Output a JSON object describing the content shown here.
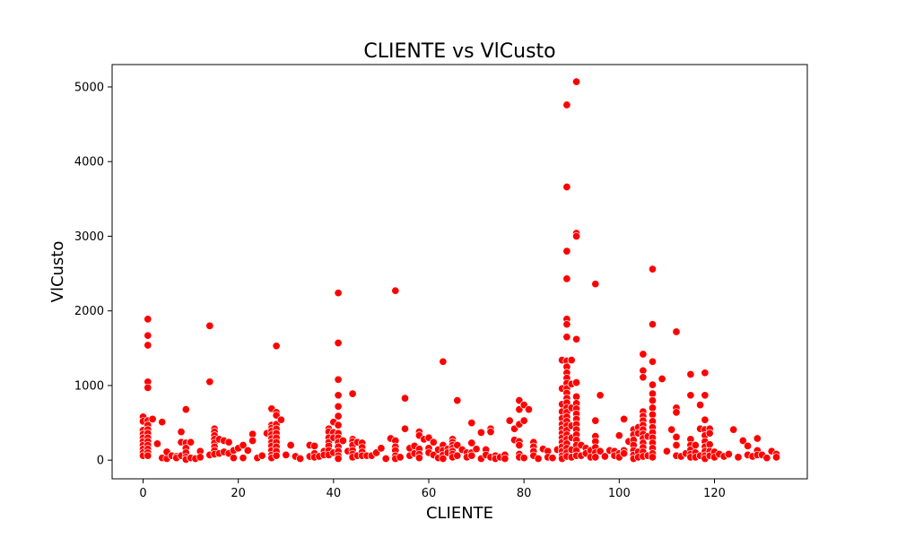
{
  "chart_data": {
    "type": "scatter",
    "title": "CLIENTE vs VlCusto",
    "xlabel": "CLIENTE",
    "ylabel": "VlCusto",
    "xlim": [
      -6.5,
      139.5
    ],
    "ylim": [
      -250,
      5300
    ],
    "xticks": [
      0,
      20,
      40,
      60,
      80,
      100,
      120
    ],
    "yticks": [
      0,
      1000,
      2000,
      3000,
      4000,
      5000
    ],
    "grid": false,
    "legend": "none",
    "marker_color": "#ff0000",
    "marker_edge": "#ffffff",
    "points": [
      [
        0,
        580
      ],
      [
        0,
        520
      ],
      [
        0,
        400
      ],
      [
        0,
        350
      ],
      [
        0,
        300
      ],
      [
        0,
        250
      ],
      [
        0,
        200
      ],
      [
        0,
        150
      ],
      [
        0,
        100
      ],
      [
        0,
        60
      ],
      [
        1,
        1890
      ],
      [
        1,
        1670
      ],
      [
        1,
        1540
      ],
      [
        1,
        1050
      ],
      [
        1,
        970
      ],
      [
        1,
        530
      ],
      [
        1,
        470
      ],
      [
        1,
        410
      ],
      [
        1,
        360
      ],
      [
        1,
        300
      ],
      [
        1,
        250
      ],
      [
        1,
        200
      ],
      [
        1,
        150
      ],
      [
        1,
        100
      ],
      [
        1,
        60
      ],
      [
        2,
        550
      ],
      [
        3,
        220
      ],
      [
        4,
        510
      ],
      [
        4,
        30
      ],
      [
        5,
        20
      ],
      [
        5,
        110
      ],
      [
        6,
        60
      ],
      [
        7,
        50
      ],
      [
        7,
        30
      ],
      [
        8,
        380
      ],
      [
        8,
        240
      ],
      [
        8,
        60
      ],
      [
        9,
        680
      ],
      [
        9,
        230
      ],
      [
        9,
        160
      ],
      [
        9,
        100
      ],
      [
        9,
        40
      ],
      [
        9,
        10
      ],
      [
        10,
        240
      ],
      [
        10,
        30
      ],
      [
        11,
        20
      ],
      [
        12,
        120
      ],
      [
        12,
        40
      ],
      [
        14,
        1800
      ],
      [
        14,
        1050
      ],
      [
        14,
        70
      ],
      [
        15,
        420
      ],
      [
        15,
        380
      ],
      [
        15,
        330
      ],
      [
        15,
        280
      ],
      [
        15,
        230
      ],
      [
        15,
        180
      ],
      [
        15,
        130
      ],
      [
        15,
        80
      ],
      [
        16,
        280
      ],
      [
        16,
        90
      ],
      [
        17,
        260
      ],
      [
        17,
        110
      ],
      [
        18,
        240
      ],
      [
        18,
        90
      ],
      [
        19,
        130
      ],
      [
        19,
        30
      ],
      [
        20,
        160
      ],
      [
        21,
        200
      ],
      [
        21,
        30
      ],
      [
        22,
        130
      ],
      [
        23,
        350
      ],
      [
        23,
        260
      ],
      [
        24,
        30
      ],
      [
        25,
        60
      ],
      [
        26,
        360
      ],
      [
        27,
        690
      ],
      [
        27,
        470
      ],
      [
        27,
        430
      ],
      [
        27,
        390
      ],
      [
        27,
        340
      ],
      [
        27,
        290
      ],
      [
        27,
        240
      ],
      [
        27,
        190
      ],
      [
        27,
        130
      ],
      [
        27,
        70
      ],
      [
        27,
        30
      ],
      [
        28,
        1530
      ],
      [
        28,
        640
      ],
      [
        28,
        600
      ],
      [
        28,
        480
      ],
      [
        28,
        420
      ],
      [
        28,
        360
      ],
      [
        28,
        300
      ],
      [
        28,
        240
      ],
      [
        28,
        180
      ],
      [
        28,
        120
      ],
      [
        28,
        60
      ],
      [
        29,
        540
      ],
      [
        30,
        70
      ],
      [
        31,
        200
      ],
      [
        32,
        50
      ],
      [
        33,
        20
      ],
      [
        35,
        200
      ],
      [
        35,
        50
      ],
      [
        36,
        190
      ],
      [
        36,
        90
      ],
      [
        36,
        40
      ],
      [
        37,
        50
      ],
      [
        38,
        120
      ],
      [
        38,
        70
      ],
      [
        39,
        420
      ],
      [
        39,
        380
      ],
      [
        39,
        300
      ],
      [
        39,
        240
      ],
      [
        39,
        190
      ],
      [
        39,
        130
      ],
      [
        39,
        70
      ],
      [
        40,
        510
      ],
      [
        40,
        370
      ],
      [
        40,
        300
      ],
      [
        40,
        100
      ],
      [
        41,
        2240
      ],
      [
        41,
        1570
      ],
      [
        41,
        1080
      ],
      [
        41,
        870
      ],
      [
        41,
        720
      ],
      [
        41,
        590
      ],
      [
        41,
        470
      ],
      [
        41,
        360
      ],
      [
        41,
        300
      ],
      [
        41,
        240
      ],
      [
        41,
        180
      ],
      [
        41,
        120
      ],
      [
        41,
        60
      ],
      [
        41,
        20
      ],
      [
        42,
        260
      ],
      [
        43,
        120
      ],
      [
        44,
        890
      ],
      [
        44,
        280
      ],
      [
        44,
        250
      ],
      [
        44,
        200
      ],
      [
        44,
        130
      ],
      [
        44,
        80
      ],
      [
        44,
        40
      ],
      [
        45,
        240
      ],
      [
        45,
        60
      ],
      [
        46,
        230
      ],
      [
        46,
        170
      ],
      [
        46,
        110
      ],
      [
        46,
        60
      ],
      [
        47,
        60
      ],
      [
        48,
        60
      ],
      [
        49,
        100
      ],
      [
        50,
        160
      ],
      [
        51,
        20
      ],
      [
        52,
        290
      ],
      [
        53,
        2270
      ],
      [
        53,
        260
      ],
      [
        53,
        180
      ],
      [
        53,
        130
      ],
      [
        53,
        60
      ],
      [
        53,
        20
      ],
      [
        54,
        40
      ],
      [
        55,
        830
      ],
      [
        55,
        420
      ],
      [
        56,
        160
      ],
      [
        56,
        60
      ],
      [
        57,
        190
      ],
      [
        57,
        90
      ],
      [
        58,
        380
      ],
      [
        58,
        330
      ],
      [
        58,
        150
      ],
      [
        58,
        80
      ],
      [
        58,
        30
      ],
      [
        59,
        280
      ],
      [
        60,
        300
      ],
      [
        60,
        160
      ],
      [
        60,
        100
      ],
      [
        61,
        240
      ],
      [
        61,
        70
      ],
      [
        62,
        140
      ],
      [
        62,
        30
      ],
      [
        63,
        1320
      ],
      [
        63,
        200
      ],
      [
        63,
        130
      ],
      [
        63,
        70
      ],
      [
        63,
        20
      ],
      [
        64,
        150
      ],
      [
        64,
        100
      ],
      [
        65,
        280
      ],
      [
        65,
        240
      ],
      [
        65,
        200
      ],
      [
        65,
        160
      ],
      [
        65,
        120
      ],
      [
        65,
        80
      ],
      [
        65,
        40
      ],
      [
        66,
        800
      ],
      [
        66,
        200
      ],
      [
        66,
        60
      ],
      [
        67,
        140
      ],
      [
        68,
        100
      ],
      [
        68,
        40
      ],
      [
        69,
        500
      ],
      [
        69,
        230
      ],
      [
        69,
        100
      ],
      [
        69,
        60
      ],
      [
        70,
        150
      ],
      [
        71,
        370
      ],
      [
        71,
        20
      ],
      [
        72,
        140
      ],
      [
        72,
        70
      ],
      [
        73,
        420
      ],
      [
        73,
        380
      ],
      [
        73,
        40
      ],
      [
        74,
        60
      ],
      [
        74,
        20
      ],
      [
        75,
        40
      ],
      [
        76,
        70
      ],
      [
        76,
        20
      ],
      [
        77,
        530
      ],
      [
        78,
        420
      ],
      [
        78,
        270
      ],
      [
        79,
        800
      ],
      [
        79,
        680
      ],
      [
        79,
        480
      ],
      [
        79,
        250
      ],
      [
        79,
        200
      ],
      [
        79,
        80
      ],
      [
        79,
        40
      ],
      [
        80,
        740
      ],
      [
        80,
        530
      ],
      [
        80,
        30
      ],
      [
        81,
        680
      ],
      [
        82,
        240
      ],
      [
        82,
        180
      ],
      [
        82,
        120
      ],
      [
        82,
        60
      ],
      [
        83,
        20
      ],
      [
        84,
        150
      ],
      [
        85,
        120
      ],
      [
        85,
        40
      ],
      [
        86,
        30
      ],
      [
        87,
        140
      ],
      [
        88,
        1340
      ],
      [
        88,
        960
      ],
      [
        88,
        750
      ],
      [
        88,
        650
      ],
      [
        88,
        560
      ],
      [
        88,
        480
      ],
      [
        88,
        420
      ],
      [
        88,
        360
      ],
      [
        88,
        300
      ],
      [
        88,
        240
      ],
      [
        88,
        180
      ],
      [
        88,
        120
      ],
      [
        88,
        60
      ],
      [
        88,
        20
      ],
      [
        89,
        4760
      ],
      [
        89,
        3660
      ],
      [
        89,
        2800
      ],
      [
        89,
        2430
      ],
      [
        89,
        1890
      ],
      [
        89,
        1820
      ],
      [
        89,
        1650
      ],
      [
        89,
        1330
      ],
      [
        89,
        1250
      ],
      [
        89,
        1170
      ],
      [
        89,
        1100
      ],
      [
        89,
        1030
      ],
      [
        89,
        960
      ],
      [
        89,
        900
      ],
      [
        89,
        830
      ],
      [
        89,
        770
      ],
      [
        89,
        700
      ],
      [
        89,
        640
      ],
      [
        89,
        580
      ],
      [
        89,
        520
      ],
      [
        89,
        460
      ],
      [
        89,
        400
      ],
      [
        89,
        340
      ],
      [
        89,
        280
      ],
      [
        89,
        220
      ],
      [
        89,
        160
      ],
      [
        89,
        100
      ],
      [
        89,
        50
      ],
      [
        90,
        1340
      ],
      [
        90,
        1020
      ],
      [
        90,
        700
      ],
      [
        90,
        460
      ],
      [
        90,
        300
      ],
      [
        90,
        140
      ],
      [
        90,
        40
      ],
      [
        91,
        5070
      ],
      [
        91,
        3040
      ],
      [
        91,
        3000
      ],
      [
        91,
        1620
      ],
      [
        91,
        1040
      ],
      [
        91,
        850
      ],
      [
        91,
        760
      ],
      [
        91,
        690
      ],
      [
        91,
        620
      ],
      [
        91,
        550
      ],
      [
        91,
        480
      ],
      [
        91,
        410
      ],
      [
        91,
        340
      ],
      [
        91,
        270
      ],
      [
        91,
        200
      ],
      [
        91,
        130
      ],
      [
        91,
        60
      ],
      [
        92,
        200
      ],
      [
        92,
        60
      ],
      [
        93,
        160
      ],
      [
        93,
        90
      ],
      [
        94,
        130
      ],
      [
        94,
        40
      ],
      [
        95,
        2360
      ],
      [
        95,
        530
      ],
      [
        95,
        320
      ],
      [
        95,
        250
      ],
      [
        95,
        170
      ],
      [
        95,
        100
      ],
      [
        95,
        40
      ],
      [
        96,
        870
      ],
      [
        96,
        120
      ],
      [
        97,
        50
      ],
      [
        98,
        130
      ],
      [
        99,
        120
      ],
      [
        99,
        60
      ],
      [
        100,
        330
      ],
      [
        100,
        90
      ],
      [
        100,
        40
      ],
      [
        101,
        550
      ],
      [
        101,
        130
      ],
      [
        101,
        90
      ],
      [
        102,
        250
      ],
      [
        103,
        410
      ],
      [
        103,
        340
      ],
      [
        103,
        270
      ],
      [
        103,
        200
      ],
      [
        103,
        130
      ],
      [
        103,
        70
      ],
      [
        103,
        20
      ],
      [
        104,
        440
      ],
      [
        104,
        360
      ],
      [
        104,
        110
      ],
      [
        104,
        40
      ],
      [
        105,
        1420
      ],
      [
        105,
        1200
      ],
      [
        105,
        1110
      ],
      [
        105,
        650
      ],
      [
        105,
        590
      ],
      [
        105,
        530
      ],
      [
        105,
        470
      ],
      [
        105,
        410
      ],
      [
        105,
        350
      ],
      [
        105,
        290
      ],
      [
        105,
        230
      ],
      [
        105,
        170
      ],
      [
        105,
        110
      ],
      [
        105,
        50
      ],
      [
        106,
        320
      ],
      [
        106,
        60
      ],
      [
        107,
        2560
      ],
      [
        107,
        1820
      ],
      [
        107,
        1320
      ],
      [
        107,
        1010
      ],
      [
        107,
        890
      ],
      [
        107,
        800
      ],
      [
        107,
        700
      ],
      [
        107,
        610
      ],
      [
        107,
        520
      ],
      [
        107,
        440
      ],
      [
        107,
        370
      ],
      [
        107,
        300
      ],
      [
        107,
        230
      ],
      [
        107,
        160
      ],
      [
        107,
        90
      ],
      [
        107,
        40
      ],
      [
        109,
        1090
      ],
      [
        110,
        120
      ],
      [
        111,
        410
      ],
      [
        112,
        1720
      ],
      [
        112,
        700
      ],
      [
        112,
        640
      ],
      [
        112,
        310
      ],
      [
        112,
        200
      ],
      [
        112,
        60
      ],
      [
        113,
        50
      ],
      [
        114,
        90
      ],
      [
        115,
        1150
      ],
      [
        115,
        870
      ],
      [
        115,
        280
      ],
      [
        115,
        200
      ],
      [
        115,
        140
      ],
      [
        115,
        80
      ],
      [
        115,
        40
      ],
      [
        116,
        200
      ],
      [
        116,
        100
      ],
      [
        116,
        40
      ],
      [
        117,
        740
      ],
      [
        117,
        420
      ],
      [
        117,
        60
      ],
      [
        118,
        1170
      ],
      [
        118,
        870
      ],
      [
        118,
        540
      ],
      [
        118,
        410
      ],
      [
        118,
        330
      ],
      [
        118,
        250
      ],
      [
        118,
        180
      ],
      [
        118,
        120
      ],
      [
        118,
        60
      ],
      [
        118,
        20
      ],
      [
        119,
        420
      ],
      [
        119,
        360
      ],
      [
        119,
        210
      ],
      [
        119,
        120
      ],
      [
        119,
        60
      ],
      [
        120,
        110
      ],
      [
        120,
        40
      ],
      [
        121,
        80
      ],
      [
        122,
        50
      ],
      [
        123,
        80
      ],
      [
        124,
        410
      ],
      [
        125,
        40
      ],
      [
        126,
        260
      ],
      [
        127,
        190
      ],
      [
        127,
        70
      ],
      [
        128,
        50
      ],
      [
        129,
        290
      ],
      [
        129,
        130
      ],
      [
        129,
        70
      ],
      [
        130,
        70
      ],
      [
        131,
        30
      ],
      [
        132,
        120
      ],
      [
        133,
        80
      ],
      [
        133,
        40
      ]
    ]
  }
}
